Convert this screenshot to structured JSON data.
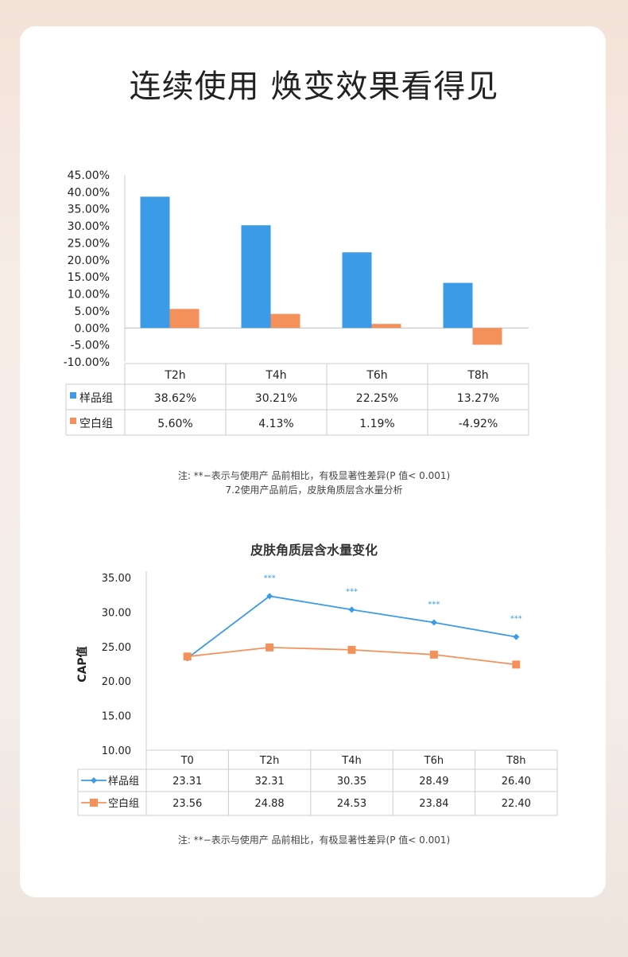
{
  "title": "连续使用 焕变效果看得见",
  "chart_data": [
    {
      "type": "bar",
      "categories": [
        "T2h",
        "T4h",
        "T6h",
        "T8h"
      ],
      "series": [
        {
          "name": "样品组",
          "values": [
            38.62,
            30.21,
            22.25,
            13.27
          ],
          "labels": [
            "38.62%",
            "30.21%",
            "22.25%",
            "13.27%"
          ],
          "color": "#3b9be6"
        },
        {
          "name": "空白组",
          "values": [
            5.6,
            4.13,
            1.19,
            -4.92
          ],
          "labels": [
            "5.60%",
            "4.13%",
            "1.19%",
            "-4.92%"
          ],
          "color": "#f4915a"
        }
      ],
      "ylim": [
        -10,
        45
      ],
      "yticks": [
        "45.00%",
        "40.00%",
        "35.00%",
        "30.00%",
        "25.00%",
        "20.00%",
        "15.00%",
        "10.00%",
        "5.00%",
        "0.00%",
        "-5.00%",
        "-10.00%"
      ],
      "title": "",
      "xlabel": "",
      "ylabel": ""
    },
    {
      "type": "line",
      "title": "皮肤角质层含水量变化",
      "ylabel": "CAP值",
      "categories": [
        "T0",
        "T2h",
        "T4h",
        "T6h",
        "T8h"
      ],
      "series": [
        {
          "name": "样品组",
          "values": [
            23.31,
            32.31,
            30.35,
            28.49,
            26.4
          ],
          "labels": [
            "23.31",
            "32.31",
            "30.35",
            "28.49",
            "26.40"
          ],
          "color": "#3b9be6",
          "marker": "diamond"
        },
        {
          "name": "空白组",
          "values": [
            23.56,
            24.88,
            24.53,
            23.84,
            22.4
          ],
          "labels": [
            "23.56",
            "24.88",
            "24.53",
            "23.84",
            "22.40"
          ],
          "color": "#f4915a",
          "marker": "square"
        }
      ],
      "annotations": [
        "",
        "***",
        "***",
        "***",
        "***"
      ],
      "ylim": [
        10,
        35
      ],
      "yticks": [
        "35.00",
        "30.00",
        "25.00",
        "20.00",
        "15.00",
        "10.00"
      ]
    }
  ],
  "notes": {
    "n1": "注: **−表示与使用产 品前相比，有极显著性差异(P 值< 0.001)",
    "n2": "7.2使用产品前后，皮肤角质层含水量分析",
    "n3": "注: **−表示与使用产 品前相比，有极显著性差异(P 值< 0.001)"
  }
}
